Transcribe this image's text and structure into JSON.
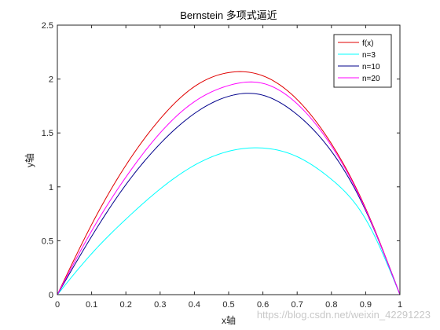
{
  "chart_data": {
    "type": "line",
    "title": "Bernstein 多项式逼近",
    "xlabel": "x轴",
    "ylabel": "y轴",
    "xlim": [
      0,
      1
    ],
    "ylim": [
      0,
      2.5
    ],
    "xticks": [
      "0",
      "0.1",
      "0.2",
      "0.3",
      "0.4",
      "0.5",
      "0.6",
      "0.7",
      "0.8",
      "0.9",
      "1"
    ],
    "yticks": [
      "0",
      "0.5",
      "1",
      "1.5",
      "2",
      "2.5"
    ],
    "grid": false,
    "legend_position": "top-right",
    "x": [
      0,
      0.1,
      0.2,
      0.3,
      0.4,
      0.5,
      0.6,
      0.7,
      0.8,
      0.9,
      1
    ],
    "series": [
      {
        "name": "f(x)",
        "color": "#e00000",
        "values": [
          0,
          0.65,
          1.2,
          1.63,
          1.93,
          2.06,
          2.03,
          1.81,
          1.4,
          0.8,
          0
        ]
      },
      {
        "name": "n=3",
        "color": "#00ffff",
        "values": [
          0,
          0.38,
          0.7,
          0.98,
          1.2,
          1.33,
          1.36,
          1.28,
          1.07,
          0.7,
          0
        ]
      },
      {
        "name": "n=10",
        "color": "#00008b",
        "values": [
          0,
          0.54,
          1.02,
          1.4,
          1.68,
          1.84,
          1.85,
          1.67,
          1.33,
          0.78,
          0
        ]
      },
      {
        "name": "n=20",
        "color": "#ff00ff",
        "values": [
          0,
          0.59,
          1.09,
          1.5,
          1.79,
          1.94,
          1.96,
          1.77,
          1.38,
          0.79,
          0
        ]
      }
    ]
  },
  "watermark": "https://blog.csdn.net/weixin_42291223"
}
